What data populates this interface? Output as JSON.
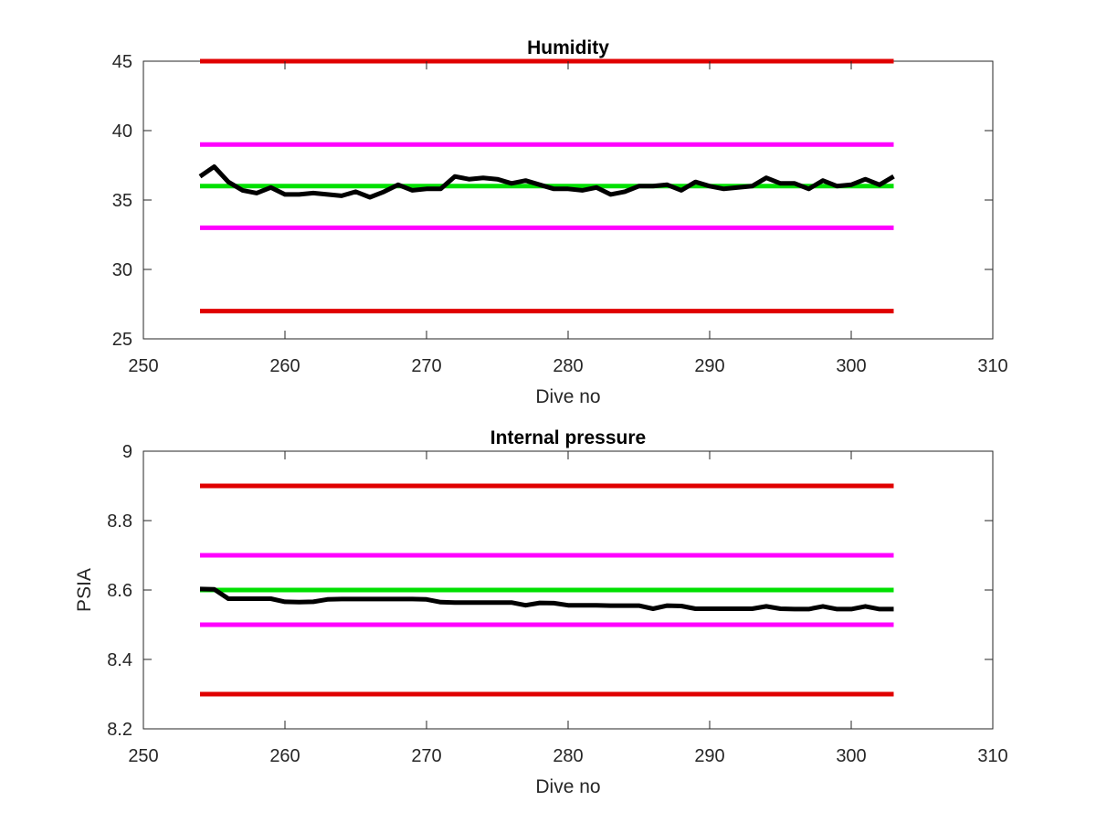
{
  "chart_data": [
    {
      "type": "line",
      "title": "Humidity",
      "xlabel": "Dive no",
      "ylabel": "",
      "xlim": [
        250,
        310
      ],
      "ylim": [
        25,
        45
      ],
      "xticks": [
        250,
        260,
        270,
        280,
        290,
        300,
        310
      ],
      "yticks": [
        25,
        30,
        35,
        40,
        45
      ],
      "xtick_labels": [
        "250",
        "260",
        "270",
        "280",
        "290",
        "300",
        "310"
      ],
      "ytick_labels": [
        "25",
        "30",
        "35",
        "40",
        "45"
      ],
      "grid": false,
      "reference_lines": [
        {
          "value": 45,
          "x_range": [
            254,
            303
          ],
          "color": "#e00000"
        },
        {
          "value": 39,
          "x_range": [
            254,
            303
          ],
          "color": "#ff00ff"
        },
        {
          "value": 36,
          "x_range": [
            254,
            303
          ],
          "color": "#00e000"
        },
        {
          "value": 33,
          "x_range": [
            254,
            303
          ],
          "color": "#ff00ff"
        },
        {
          "value": 27,
          "x_range": [
            254,
            303
          ],
          "color": "#e00000"
        }
      ],
      "series": [
        {
          "color": "#000000",
          "x": [
            254,
            255,
            256,
            257,
            258,
            259,
            260,
            261,
            262,
            263,
            264,
            265,
            266,
            267,
            268,
            269,
            270,
            271,
            272,
            273,
            274,
            275,
            276,
            277,
            278,
            279,
            280,
            281,
            282,
            283,
            284,
            285,
            286,
            287,
            288,
            289,
            290,
            291,
            292,
            293,
            294,
            295,
            296,
            297,
            298,
            299,
            300,
            301,
            302,
            303
          ],
          "y": [
            36.7,
            37.4,
            36.3,
            35.7,
            35.5,
            35.9,
            35.4,
            35.4,
            35.5,
            35.4,
            35.3,
            35.6,
            35.2,
            35.6,
            36.1,
            35.7,
            35.8,
            35.8,
            36.7,
            36.5,
            36.6,
            36.5,
            36.2,
            36.4,
            36.1,
            35.8,
            35.8,
            35.7,
            35.9,
            35.4,
            35.6,
            36.0,
            36.0,
            36.1,
            35.7,
            36.3,
            36.0,
            35.8,
            35.9,
            36.0,
            36.6,
            36.2,
            36.2,
            35.8,
            36.4,
            36.0,
            36.1,
            36.5,
            36.1,
            36.7
          ]
        }
      ]
    },
    {
      "type": "line",
      "title": "Internal pressure",
      "xlabel": "Dive no",
      "ylabel": "PSIA",
      "xlim": [
        250,
        310
      ],
      "ylim": [
        8.2,
        9
      ],
      "xticks": [
        250,
        260,
        270,
        280,
        290,
        300,
        310
      ],
      "yticks": [
        8.2,
        8.4,
        8.6,
        8.8,
        9
      ],
      "xtick_labels": [
        "250",
        "260",
        "270",
        "280",
        "290",
        "300",
        "310"
      ],
      "ytick_labels": [
        "8.2",
        "8.4",
        "8.6",
        "8.8",
        "9"
      ],
      "grid": false,
      "reference_lines": [
        {
          "value": 8.9,
          "x_range": [
            254,
            303
          ],
          "color": "#e00000"
        },
        {
          "value": 8.7,
          "x_range": [
            254,
            303
          ],
          "color": "#ff00ff"
        },
        {
          "value": 8.6,
          "x_range": [
            254,
            303
          ],
          "color": "#00e000"
        },
        {
          "value": 8.5,
          "x_range": [
            254,
            303
          ],
          "color": "#ff00ff"
        },
        {
          "value": 8.3,
          "x_range": [
            254,
            303
          ],
          "color": "#e00000"
        }
      ],
      "series": [
        {
          "color": "#000000",
          "x": [
            254,
            255,
            256,
            257,
            258,
            259,
            260,
            261,
            262,
            263,
            264,
            265,
            266,
            267,
            268,
            269,
            270,
            271,
            272,
            273,
            274,
            275,
            276,
            277,
            278,
            279,
            280,
            281,
            282,
            283,
            284,
            285,
            286,
            287,
            288,
            289,
            290,
            291,
            292,
            293,
            294,
            295,
            296,
            297,
            298,
            299,
            300,
            301,
            302,
            303
          ],
          "y": [
            8.603,
            8.602,
            8.575,
            8.575,
            8.575,
            8.575,
            8.566,
            8.565,
            8.566,
            8.573,
            8.574,
            8.574,
            8.574,
            8.574,
            8.574,
            8.574,
            8.573,
            8.565,
            8.564,
            8.564,
            8.564,
            8.564,
            8.564,
            8.556,
            8.563,
            8.562,
            8.556,
            8.556,
            8.556,
            8.555,
            8.555,
            8.555,
            8.546,
            8.555,
            8.554,
            8.546,
            8.546,
            8.546,
            8.546,
            8.546,
            8.553,
            8.546,
            8.545,
            8.545,
            8.553,
            8.545,
            8.545,
            8.553,
            8.545,
            8.545
          ]
        }
      ]
    }
  ]
}
